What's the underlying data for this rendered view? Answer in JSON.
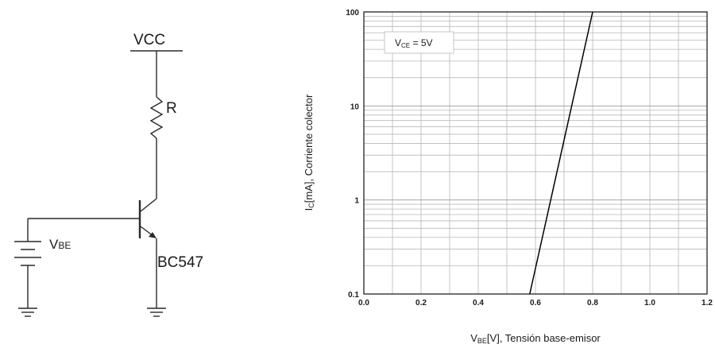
{
  "circuit": {
    "vcc_label": "VCC",
    "resistor_label": "R",
    "vbe_main": "V",
    "vbe_sub": "BE",
    "transistor_label": "BC547"
  },
  "chart_data": {
    "type": "line",
    "title": "",
    "annotation": {
      "main": "V",
      "sub": "CE",
      "rest": " = 5V"
    },
    "xlabel": {
      "main": "V",
      "sub": "BE",
      "rest": "[V], Tensión base-emisor"
    },
    "ylabel": {
      "main": "I",
      "sub": "C",
      "rest": "[mA], Corriente colector"
    },
    "xlim": [
      0.0,
      1.2
    ],
    "ylim": [
      0.1,
      100
    ],
    "yscale": "log",
    "grid": true,
    "x_ticks": [
      "0.0",
      "0.2",
      "0.4",
      "0.6",
      "0.8",
      "1.0",
      "1.2"
    ],
    "y_ticks": [
      "0.1",
      "1",
      "10",
      "100"
    ],
    "series": [
      {
        "x": [
          0.58,
          0.8
        ],
        "y": [
          0.1,
          100
        ]
      }
    ]
  }
}
